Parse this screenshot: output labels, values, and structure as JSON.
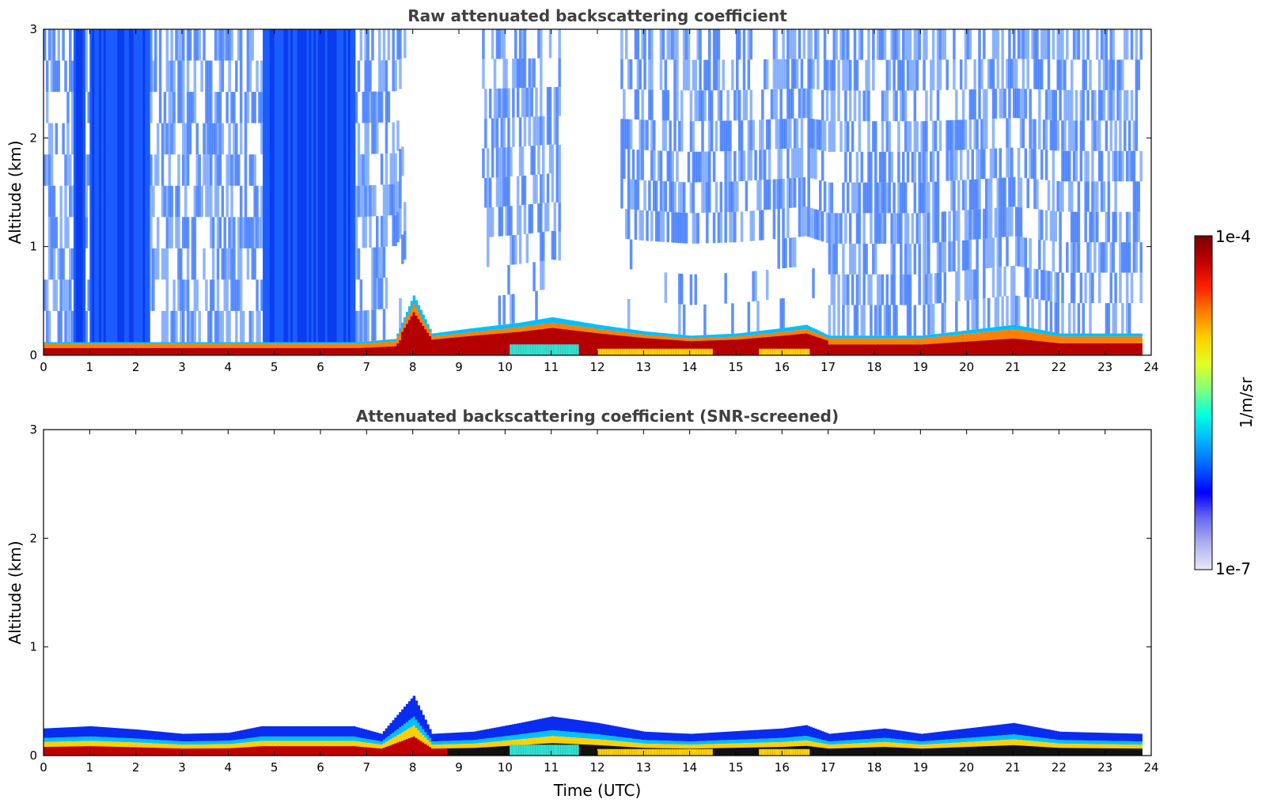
{
  "chart_data": [
    {
      "type": "heatmap",
      "title": "Raw attenuated backscattering coefficient",
      "xlabel": "",
      "ylabel": "Altitude (km)",
      "xlim": [
        0,
        24
      ],
      "ylim": [
        0,
        3
      ],
      "xticks": [
        "0",
        "1",
        "2",
        "3",
        "4",
        "5",
        "6",
        "7",
        "8",
        "9",
        "10",
        "11",
        "12",
        "13",
        "14",
        "15",
        "16",
        "17",
        "18",
        "19",
        "20",
        "21",
        "22",
        "23",
        "24"
      ],
      "yticks": [
        "0",
        "1",
        "2",
        "3"
      ],
      "features": {
        "surface_layer_top_km": [
          [
            0,
            0.12
          ],
          [
            6.8,
            0.12
          ],
          [
            7.6,
            0.15
          ],
          [
            8.0,
            0.55
          ],
          [
            8.4,
            0.2
          ],
          [
            9.3,
            0.25
          ],
          [
            10.3,
            0.3
          ],
          [
            11.0,
            0.35
          ],
          [
            12.0,
            0.28
          ],
          [
            13.0,
            0.22
          ],
          [
            14.0,
            0.18
          ],
          [
            15.0,
            0.2
          ],
          [
            16.0,
            0.25
          ],
          [
            16.5,
            0.28
          ],
          [
            17.0,
            0.18
          ],
          [
            19.0,
            0.18
          ],
          [
            21.0,
            0.28
          ],
          [
            22.0,
            0.2
          ],
          [
            23.8,
            0.2
          ]
        ],
        "dense_background_hours": [
          [
            0.65,
            0.9
          ],
          [
            1.0,
            2.3
          ],
          [
            4.7,
            6.7
          ]
        ],
        "noisy_background_hours": [
          [
            0,
            0.65
          ],
          [
            0.9,
            1.0
          ],
          [
            2.3,
            4.7
          ],
          [
            6.7,
            7.8
          ],
          [
            9.5,
            11.2
          ],
          [
            12.5,
            16.5
          ],
          [
            16.5,
            23.8
          ]
        ]
      }
    },
    {
      "type": "heatmap",
      "title": "Attenuated backscattering coefficient (SNR-screened)",
      "xlabel": "Time (UTC)",
      "ylabel": "Altitude (km)",
      "xlim": [
        0,
        24
      ],
      "ylim": [
        0,
        3
      ],
      "xticks": [
        "0",
        "1",
        "2",
        "3",
        "4",
        "5",
        "6",
        "7",
        "8",
        "9",
        "10",
        "11",
        "12",
        "13",
        "14",
        "15",
        "16",
        "17",
        "18",
        "19",
        "20",
        "21",
        "22",
        "23",
        "24"
      ],
      "yticks": [
        "0",
        "1",
        "2",
        "3"
      ],
      "features": {
        "blue_layer_top_km": [
          [
            0,
            0.25
          ],
          [
            1,
            0.27
          ],
          [
            2,
            0.24
          ],
          [
            3,
            0.2
          ],
          [
            4,
            0.21
          ],
          [
            4.7,
            0.27
          ],
          [
            6.7,
            0.27
          ],
          [
            7.3,
            0.2
          ],
          [
            8.0,
            0.55
          ],
          [
            8.4,
            0.2
          ],
          [
            9.3,
            0.22
          ],
          [
            10.3,
            0.3
          ],
          [
            11.0,
            0.36
          ],
          [
            12.0,
            0.3
          ],
          [
            13.0,
            0.22
          ],
          [
            14.0,
            0.2
          ],
          [
            16.0,
            0.25
          ],
          [
            16.5,
            0.28
          ],
          [
            17.0,
            0.2
          ],
          [
            18.2,
            0.25
          ],
          [
            19.0,
            0.2
          ],
          [
            21.0,
            0.3
          ],
          [
            22.0,
            0.22
          ],
          [
            23.8,
            0.2
          ]
        ]
      }
    }
  ],
  "colorbar": {
    "max_label": "1e-4",
    "min_label": "1e-7",
    "unit_label": "1/m/sr",
    "scale": "log",
    "colormap": [
      "#e8e8f8",
      "#b0b0f0",
      "#6a6af0",
      "#0000ff",
      "#0060ff",
      "#00b0ff",
      "#00ffe0",
      "#80ff80",
      "#e0ff20",
      "#ffd000",
      "#ff8000",
      "#ff2000",
      "#c00000",
      "#7a0000"
    ]
  }
}
